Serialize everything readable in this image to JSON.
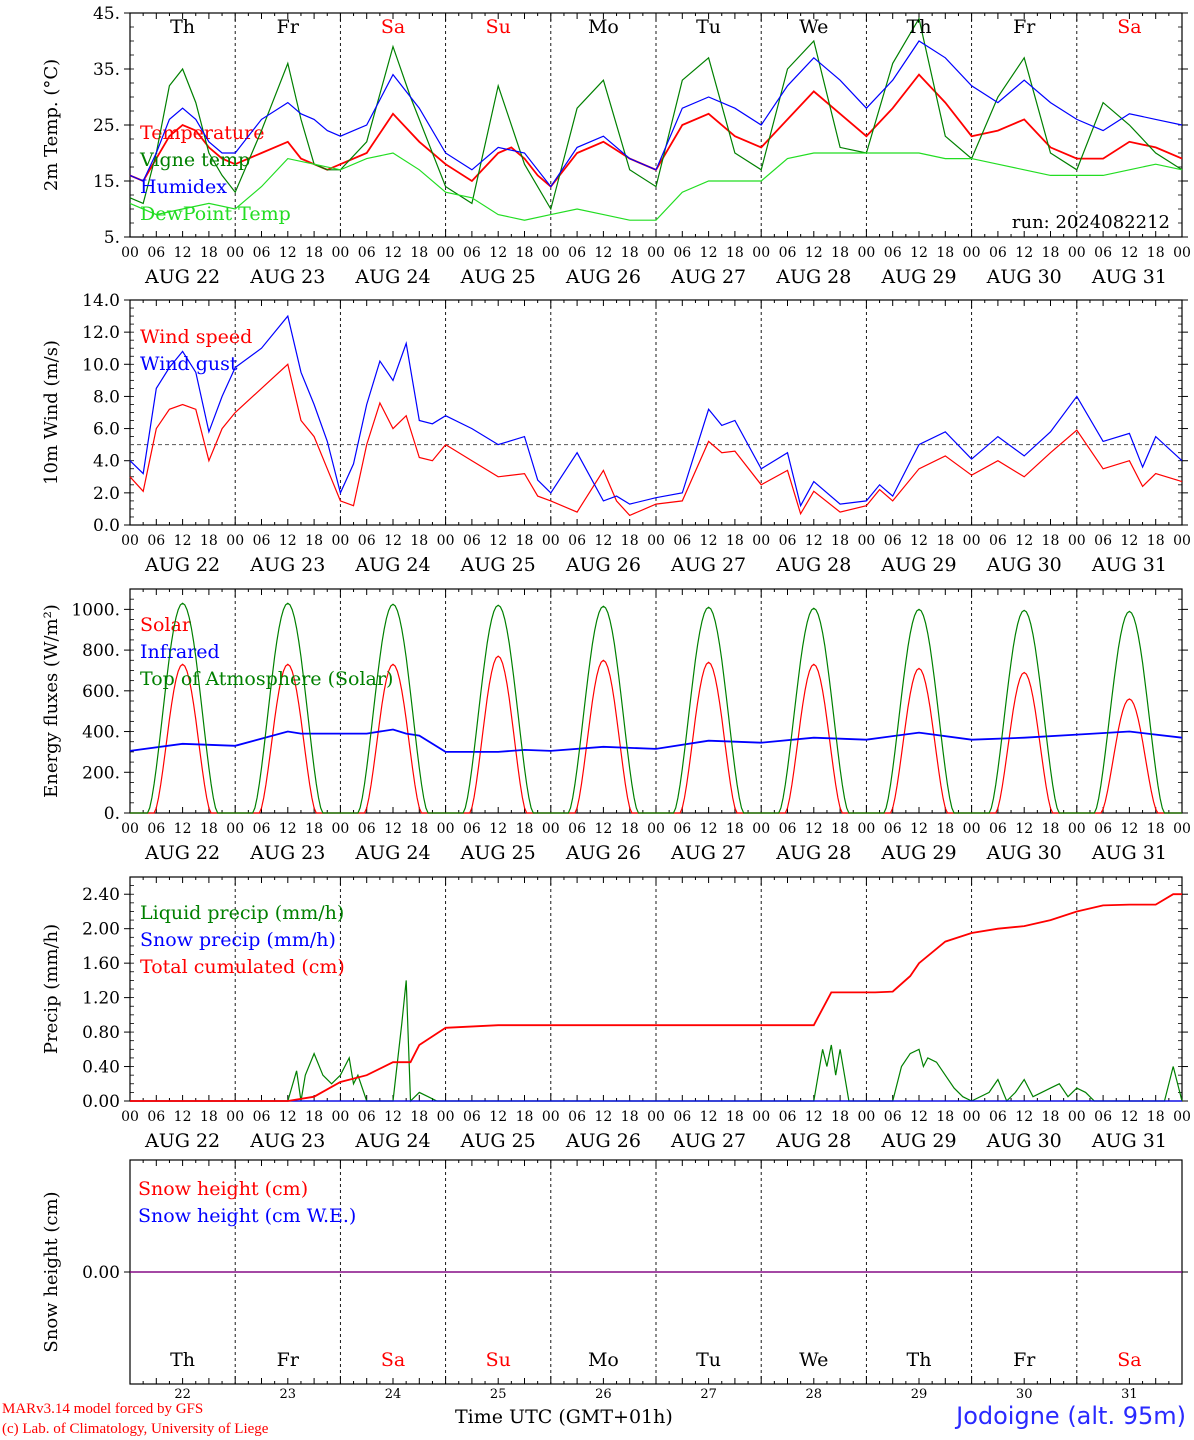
{
  "run_label": "run: 2024082212",
  "footer": {
    "model": "MARv3.14 model forced by GFS",
    "copyright": "(c) Lab. of Climatology, University of Liege",
    "xlabel": "Time UTC (GMT+01h)",
    "station": "Jodoigne (alt. 95m)"
  },
  "days": [
    {
      "dow": "Th",
      "date": "AUG 22",
      "num": "22",
      "weekend": false
    },
    {
      "dow": "Fr",
      "date": "AUG 23",
      "num": "23",
      "weekend": false
    },
    {
      "dow": "Sa",
      "date": "AUG 24",
      "num": "24",
      "weekend": true
    },
    {
      "dow": "Su",
      "date": "AUG 25",
      "num": "25",
      "weekend": true
    },
    {
      "dow": "Mo",
      "date": "AUG 26",
      "num": "26",
      "weekend": false
    },
    {
      "dow": "Tu",
      "date": "AUG 27",
      "num": "27",
      "weekend": false
    },
    {
      "dow": "We",
      "date": "AUG 28",
      "num": "28",
      "weekend": false
    },
    {
      "dow": "Th",
      "date": "AUG 29",
      "num": "29",
      "weekend": false
    },
    {
      "dow": "Fr",
      "date": "AUG 30",
      "num": "30",
      "weekend": false
    },
    {
      "dow": "Sa",
      "date": "AUG 31",
      "num": "31",
      "weekend": true
    }
  ],
  "hour_ticks": [
    "00",
    "06",
    "12",
    "18"
  ],
  "colors": {
    "red": "#ff0000",
    "green": "#008000",
    "blue": "#0000ff",
    "lime": "#22dd22",
    "purple": "#800080",
    "gray": "#555555"
  },
  "chart_data": [
    {
      "id": "temp",
      "type": "line",
      "ylabel": "2m Temp. (°C)",
      "ylim": [
        5,
        45
      ],
      "yticks": [
        "5.",
        "15.",
        "25.",
        "35.",
        "45."
      ],
      "x_unit": "hours since AUG 22 00 UTC",
      "series": [
        {
          "name": "Temperature",
          "color": "#ff0000",
          "x": [
            0,
            3,
            6,
            9,
            12,
            15,
            18,
            21,
            24,
            30,
            36,
            39,
            42,
            45,
            48,
            54,
            60,
            66,
            72,
            78,
            84,
            87,
            90,
            93,
            96,
            102,
            108,
            114,
            120,
            126,
            132,
            138,
            144,
            150,
            156,
            162,
            168,
            174,
            180,
            186,
            192,
            198,
            204,
            210,
            216,
            222,
            228,
            234,
            240
          ],
          "y": [
            16,
            15,
            19,
            23,
            25,
            24,
            21,
            19,
            18,
            20,
            22,
            19,
            18,
            17,
            18,
            20,
            27,
            22,
            18,
            15,
            20,
            21,
            19,
            16,
            14,
            20,
            22,
            19,
            17,
            25,
            27,
            23,
            21,
            26,
            31,
            27,
            23,
            28,
            34,
            29,
            23,
            24,
            26,
            21,
            19,
            19,
            22,
            21,
            19
          ]
        },
        {
          "name": "Vigne temp",
          "color": "#008000",
          "x": [
            0,
            3,
            6,
            9,
            12,
            15,
            18,
            21,
            24,
            30,
            36,
            39,
            42,
            45,
            48,
            54,
            60,
            64,
            66,
            72,
            78,
            84,
            90,
            96,
            102,
            108,
            114,
            120,
            126,
            132,
            138,
            144,
            150,
            156,
            162,
            168,
            174,
            180,
            186,
            192,
            198,
            204,
            210,
            216,
            222,
            228,
            234,
            240
          ],
          "y": [
            12,
            11,
            20,
            32,
            35,
            29,
            20,
            16,
            13,
            24,
            36,
            26,
            18,
            17,
            17,
            22,
            39,
            30,
            26,
            14,
            11,
            32,
            18,
            10,
            28,
            33,
            17,
            14,
            33,
            37,
            20,
            17,
            35,
            40,
            21,
            20,
            36,
            44,
            23,
            19,
            30,
            37,
            20,
            17,
            29,
            25,
            20,
            17
          ]
        },
        {
          "name": "Humidex",
          "color": "#0000ff",
          "x": [
            0,
            3,
            6,
            9,
            12,
            15,
            18,
            21,
            24,
            30,
            36,
            39,
            42,
            45,
            48,
            54,
            60,
            66,
            72,
            78,
            84,
            90,
            96,
            102,
            108,
            114,
            120,
            126,
            132,
            138,
            144,
            150,
            156,
            162,
            168,
            174,
            180,
            186,
            192,
            198,
            204,
            210,
            216,
            222,
            228,
            234,
            240
          ],
          "y": [
            16,
            15,
            20,
            26,
            28,
            26,
            22,
            20,
            20,
            26,
            29,
            27,
            26,
            24,
            23,
            25,
            34,
            28,
            20,
            17,
            21,
            20,
            14,
            21,
            23,
            19,
            17,
            28,
            30,
            28,
            25,
            32,
            37,
            33,
            28,
            33,
            40,
            37,
            32,
            29,
            33,
            29,
            26,
            24,
            27,
            26,
            25
          ]
        },
        {
          "name": "DewPoint Temp",
          "color": "#22dd22",
          "x": [
            0,
            6,
            12,
            18,
            24,
            30,
            36,
            42,
            48,
            54,
            60,
            66,
            72,
            78,
            84,
            90,
            96,
            102,
            108,
            114,
            120,
            126,
            132,
            138,
            144,
            150,
            156,
            162,
            168,
            174,
            180,
            186,
            192,
            198,
            204,
            210,
            216,
            222,
            228,
            234,
            240
          ],
          "y": [
            11,
            9,
            10,
            11,
            10,
            14,
            19,
            18,
            17,
            19,
            20,
            17,
            13,
            12,
            9,
            8,
            9,
            10,
            9,
            8,
            8,
            13,
            15,
            15,
            15,
            19,
            20,
            20,
            20,
            20,
            20,
            19,
            19,
            18,
            17,
            16,
            16,
            16,
            17,
            18,
            17
          ]
        }
      ]
    },
    {
      "id": "wind",
      "type": "line",
      "ylabel": "10m Wind (m/s)",
      "ylim": [
        0,
        14
      ],
      "yticks": [
        "0.0",
        "2.0",
        "4.0",
        "6.0",
        "8.0",
        "10.0",
        "12.0",
        "14.0"
      ],
      "reference_line": 5,
      "series": [
        {
          "name": "Wind speed",
          "color": "#ff0000",
          "x": [
            0,
            3,
            6,
            9,
            12,
            15,
            18,
            21,
            24,
            30,
            36,
            39,
            42,
            45,
            48,
            51,
            54,
            57,
            60,
            63,
            66,
            69,
            72,
            78,
            84,
            90,
            93,
            96,
            102,
            108,
            111,
            114,
            120,
            126,
            132,
            135,
            138,
            144,
            150,
            153,
            156,
            162,
            168,
            171,
            174,
            180,
            186,
            192,
            198,
            204,
            210,
            216,
            222,
            228,
            231,
            234,
            240
          ],
          "y": [
            3,
            2.1,
            6,
            7.2,
            7.5,
            7.2,
            4,
            6,
            7,
            8.5,
            10,
            6.5,
            5.5,
            3.5,
            1.5,
            1.2,
            5,
            7.6,
            6,
            6.8,
            4.2,
            4,
            5,
            4,
            3,
            3.2,
            1.8,
            1.5,
            0.8,
            3.4,
            1.5,
            0.6,
            1.3,
            1.5,
            5.2,
            4.5,
            4.6,
            2.5,
            3.4,
            0.7,
            2.1,
            0.8,
            1.2,
            2.2,
            1.5,
            3.5,
            4.3,
            3.1,
            4,
            3,
            4.5,
            5.9,
            3.5,
            4,
            2.4,
            3.2,
            2.7
          ]
        },
        {
          "name": "Wind gust",
          "color": "#0000ff",
          "x": [
            0,
            3,
            6,
            9,
            12,
            15,
            18,
            21,
            24,
            30,
            36,
            39,
            42,
            45,
            48,
            51,
            54,
            57,
            60,
            63,
            66,
            69,
            72,
            78,
            84,
            90,
            93,
            96,
            102,
            108,
            111,
            114,
            120,
            126,
            132,
            135,
            138,
            144,
            150,
            153,
            156,
            162,
            168,
            171,
            174,
            180,
            186,
            192,
            198,
            204,
            210,
            216,
            222,
            228,
            231,
            234,
            240
          ],
          "y": [
            4,
            3.2,
            8.5,
            9.8,
            10.8,
            9.5,
            5.8,
            8,
            9.8,
            11,
            13,
            9.5,
            7.5,
            5.2,
            2,
            3.8,
            7.5,
            10.2,
            9,
            11.3,
            6.5,
            6.3,
            6.8,
            6,
            5,
            5.5,
            2.8,
            2,
            4.5,
            1.5,
            1.8,
            1.3,
            1.7,
            2,
            7.2,
            6.2,
            6.5,
            3.5,
            4.5,
            1.2,
            2.7,
            1.3,
            1.5,
            2.5,
            1.8,
            5,
            5.8,
            4.1,
            5.5,
            4.3,
            5.8,
            8,
            5.2,
            5.7,
            3.6,
            5.5,
            4
          ]
        }
      ]
    },
    {
      "id": "energy",
      "type": "line",
      "ylabel": "Energy fluxes (W/m²)",
      "ylim": [
        0,
        1100
      ],
      "yticks": [
        "0.",
        "200.",
        "400.",
        "600.",
        "800.",
        "1000."
      ],
      "series": [
        {
          "name": "Solar",
          "color": "#ff0000",
          "daily_peak": [
            730,
            730,
            730,
            770,
            750,
            740,
            730,
            710,
            690,
            560
          ]
        },
        {
          "name": "Infrared",
          "color": "#0000ff",
          "x": [
            0,
            12,
            24,
            36,
            39,
            48,
            54,
            60,
            63,
            66,
            72,
            84,
            90,
            96,
            108,
            120,
            132,
            144,
            156,
            168,
            180,
            192,
            204,
            216,
            228,
            240
          ],
          "y": [
            305,
            340,
            330,
            400,
            390,
            390,
            390,
            410,
            390,
            380,
            300,
            300,
            310,
            305,
            325,
            315,
            355,
            345,
            370,
            360,
            395,
            360,
            370,
            385,
            400,
            370
          ]
        },
        {
          "name": "Top of Atmosphere (Solar)",
          "color": "#008000",
          "daily_peak": [
            1030,
            1030,
            1025,
            1020,
            1015,
            1010,
            1005,
            1000,
            995,
            990
          ]
        }
      ]
    },
    {
      "id": "precip",
      "type": "line",
      "ylabel": "Precip (mm/h)",
      "ylim": [
        0,
        2.6
      ],
      "yticks": [
        "0.00",
        "0.40",
        "0.80",
        "1.20",
        "1.60",
        "2.00",
        "2.40"
      ],
      "series": [
        {
          "name": "Liquid precip (mm/h)",
          "color": "#008000",
          "x": [
            0,
            36,
            38,
            39,
            40,
            42,
            44,
            46,
            48,
            50,
            51,
            52,
            54,
            56,
            60,
            62,
            63,
            64,
            66,
            68,
            70,
            72,
            78,
            84,
            90,
            96,
            102,
            108,
            114,
            120,
            126,
            132,
            138,
            156,
            158,
            159,
            160,
            161,
            162,
            164,
            168,
            174,
            176,
            178,
            180,
            181,
            182,
            184,
            186,
            188,
            190,
            192,
            196,
            198,
            200,
            202,
            204,
            206,
            208,
            210,
            212,
            214,
            216,
            218,
            220,
            222,
            228,
            236,
            238,
            240
          ],
          "y": [
            0,
            0,
            0.35,
            0,
            0.3,
            0.55,
            0.3,
            0.2,
            0.3,
            0.5,
            0.2,
            0.3,
            0,
            0,
            0,
            0.9,
            1.4,
            0,
            0.1,
            0.05,
            0,
            0,
            0,
            0,
            0,
            0,
            0,
            0,
            0,
            0,
            0,
            0,
            0,
            0,
            0.6,
            0.4,
            0.65,
            0.3,
            0.6,
            0,
            0,
            0,
            0.4,
            0.55,
            0.6,
            0.4,
            0.5,
            0.45,
            0.3,
            0.15,
            0.05,
            0,
            0.1,
            0.25,
            0,
            0.1,
            0.25,
            0.05,
            0.1,
            0.15,
            0.2,
            0.05,
            0.15,
            0.1,
            0,
            0,
            0,
            0,
            0.4,
            0
          ]
        },
        {
          "name": "Snow precip (mm/h)",
          "color": "#0000ff",
          "x": [
            0,
            240
          ],
          "y": [
            0,
            0
          ]
        },
        {
          "name": "Total cumulated (cm)",
          "color": "#ff0000",
          "x": [
            0,
            36,
            42,
            48,
            54,
            60,
            64,
            66,
            72,
            84,
            96,
            108,
            120,
            132,
            144,
            150,
            156,
            160,
            170,
            174,
            178,
            180,
            186,
            192,
            198,
            204,
            210,
            216,
            222,
            228,
            234,
            238,
            240
          ],
          "y": [
            0,
            0,
            0.05,
            0.22,
            0.3,
            0.45,
            0.45,
            0.65,
            0.85,
            0.88,
            0.88,
            0.88,
            0.88,
            0.88,
            0.88,
            0.88,
            0.88,
            1.26,
            1.26,
            1.27,
            1.45,
            1.6,
            1.85,
            1.95,
            2.0,
            2.03,
            2.1,
            2.2,
            2.27,
            2.28,
            2.28,
            2.4,
            2.4
          ]
        }
      ]
    },
    {
      "id": "snow",
      "type": "line",
      "ylabel": "Snow height (cm)",
      "ylim": [
        -1,
        1
      ],
      "yticks": [
        "0.00"
      ],
      "series": [
        {
          "name": "Snow height (cm)",
          "color": "#ff0000",
          "x": [
            0,
            240
          ],
          "y": [
            0,
            0
          ]
        },
        {
          "name": "Snow height (cm W.E.)",
          "color": "#0000ff",
          "x": [
            0,
            240
          ],
          "y": [
            0,
            0
          ]
        }
      ]
    }
  ]
}
